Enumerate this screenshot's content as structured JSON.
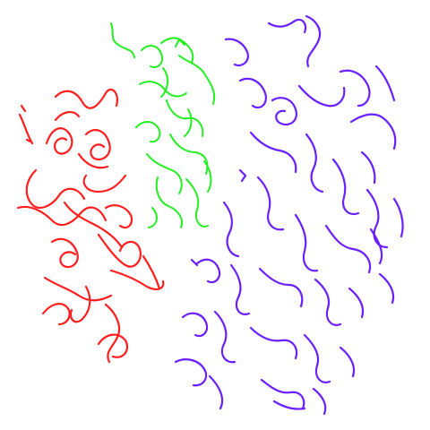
{
  "clusters": [
    {
      "name": "red",
      "color": "#ff1e1e"
    },
    {
      "name": "green",
      "color": "#22ee22"
    },
    {
      "name": "purple",
      "color": "#6a1fff"
    }
  ]
}
